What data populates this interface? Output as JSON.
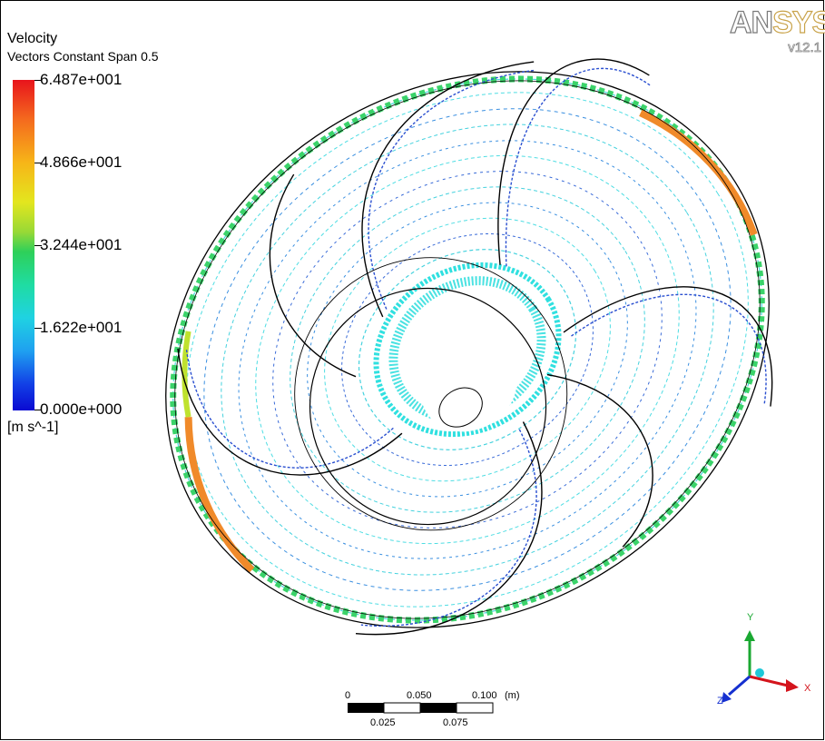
{
  "legend": {
    "title": "Velocity",
    "subtitle": "Vectors Constant Span 0.5",
    "ticks": [
      "6.487e+001",
      "4.866e+001",
      "3.244e+001",
      "1.622e+001",
      "0.000e+000"
    ],
    "units": "[m s^-1]",
    "colors": [
      "#e8141c",
      "#f7b518",
      "#2ed05a",
      "#1fa0f0",
      "#0a0ad2"
    ]
  },
  "logo": {
    "brand_a": "AN",
    "brand_b": "SYS",
    "version": "v12.1"
  },
  "scale": {
    "top_labels": [
      "0",
      "0.050",
      "0.100"
    ],
    "unit": "(m)",
    "bottom_labels": [
      "0.025",
      "0.075"
    ]
  },
  "triad": {
    "x_label": "X",
    "y_label": "Y",
    "z_label": "Z"
  },
  "colors": {
    "vector_main": "#3fd6d6",
    "vector_blue": "#3a6bd8",
    "edge_green": "#3bd36a",
    "hot_orange": "#f08a2a"
  }
}
